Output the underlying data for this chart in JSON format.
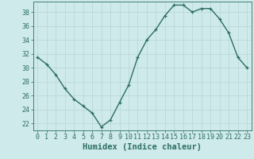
{
  "x": [
    0,
    1,
    2,
    3,
    4,
    5,
    6,
    7,
    8,
    9,
    10,
    11,
    12,
    13,
    14,
    15,
    16,
    17,
    18,
    19,
    20,
    21,
    22,
    23
  ],
  "y": [
    31.5,
    30.5,
    29.0,
    27.0,
    25.5,
    24.5,
    23.5,
    21.5,
    22.5,
    25.0,
    27.5,
    31.5,
    34.0,
    35.5,
    37.5,
    39.0,
    39.0,
    38.0,
    38.5,
    38.5,
    37.0,
    35.0,
    31.5,
    30.0
  ],
  "line_color": "#2e6e65",
  "marker": "+",
  "markersize": 3,
  "linewidth": 1.0,
  "xlabel": "Humidex (Indice chaleur)",
  "xlim": [
    -0.5,
    23.5
  ],
  "ylim": [
    21,
    39.5
  ],
  "yticks": [
    22,
    24,
    26,
    28,
    30,
    32,
    34,
    36,
    38
  ],
  "xticks": [
    0,
    1,
    2,
    3,
    4,
    5,
    6,
    7,
    8,
    9,
    10,
    11,
    12,
    13,
    14,
    15,
    16,
    17,
    18,
    19,
    20,
    21,
    22,
    23
  ],
  "bg_color": "#ceeaea",
  "grid_color": "#b8d4d4",
  "line_spine_color": "#2e6e65",
  "tick_color": "#2e6e65",
  "label_color": "#2e6e65",
  "xlabel_fontsize": 7.5,
  "tick_fontsize": 6.0
}
